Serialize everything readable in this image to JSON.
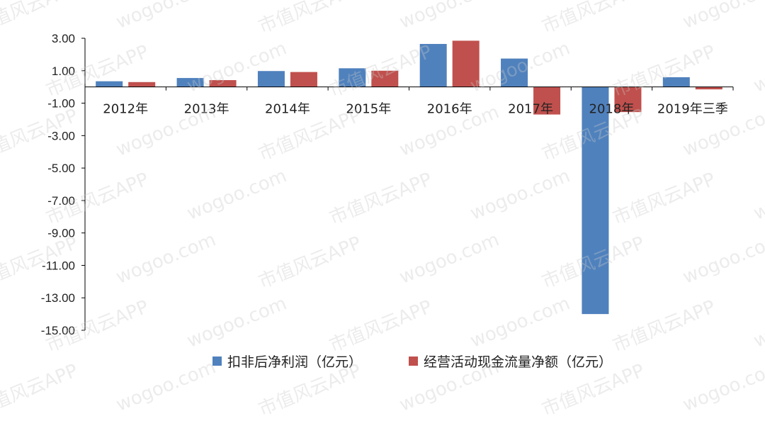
{
  "watermark": {
    "texts": [
      "市值风云APP",
      "wogoo.com"
    ]
  },
  "chart_data": {
    "type": "bar",
    "categories": [
      "2012年",
      "2013年",
      "2014年",
      "2015年",
      "2016年",
      "2017年",
      "2018年",
      "2019年三季"
    ],
    "series": [
      {
        "name": "扣非后净利润（亿元）",
        "color": "#4f81bd",
        "values": [
          0.35,
          0.55,
          0.98,
          1.15,
          2.65,
          1.75,
          -14.0,
          0.6
        ]
      },
      {
        "name": "经营活动现金流量净额（亿元）",
        "color": "#c0504d",
        "values": [
          0.3,
          0.42,
          0.92,
          1.0,
          2.85,
          -1.7,
          -1.55,
          -0.15
        ]
      }
    ],
    "y_ticks": [
      "3.00",
      "1.00",
      "-1.00",
      "-3.00",
      "-5.00",
      "-7.00",
      "-9.00",
      "-11.00",
      "-13.00",
      "-15.00"
    ],
    "ylim": [
      -15,
      3
    ],
    "legend_position": "bottom",
    "grid": false
  }
}
